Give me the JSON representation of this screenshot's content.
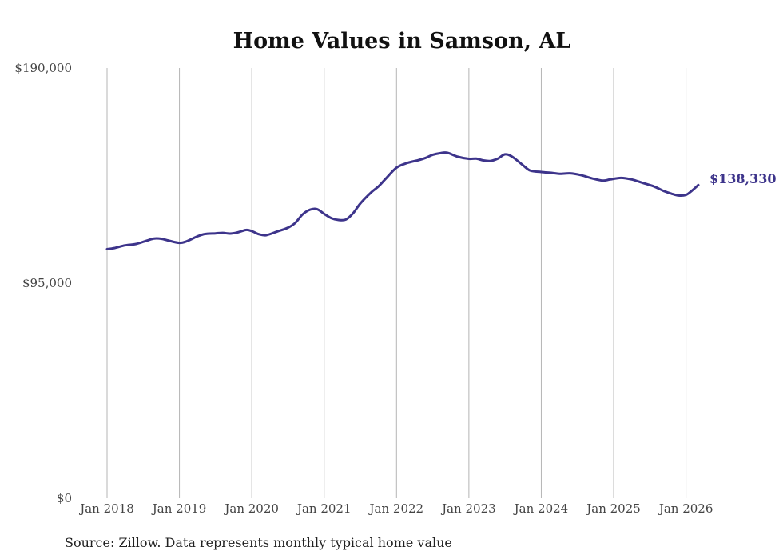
{
  "chart_data": {
    "type": "line",
    "title": "Home Values in Samson, AL",
    "xlabel": "",
    "ylabel": "",
    "ylim": [
      0,
      190000
    ],
    "yticks": [
      {
        "value": 0,
        "label": "$0"
      },
      {
        "value": 95000,
        "label": "$95,000"
      },
      {
        "value": 190000,
        "label": "$190,000"
      }
    ],
    "xticks": [
      {
        "value": 2018,
        "label": "Jan 2018"
      },
      {
        "value": 2019,
        "label": "Jan 2019"
      },
      {
        "value": 2020,
        "label": "Jan 2020"
      },
      {
        "value": 2021,
        "label": "Jan 2021"
      },
      {
        "value": 2022,
        "label": "Jan 2022"
      },
      {
        "value": 2023,
        "label": "Jan 2023"
      },
      {
        "value": 2024,
        "label": "Jan 2024"
      },
      {
        "value": 2025,
        "label": "Jan 2025"
      },
      {
        "value": 2026,
        "label": "Jan 2026"
      }
    ],
    "xlim": [
      2018,
      2026.17
    ],
    "grid": "vertical",
    "line_color": "#3d348b",
    "end_label": "$138,330",
    "series": [
      {
        "name": "Typical home value",
        "x": [
          2018.0,
          2018.1,
          2018.25,
          2018.4,
          2018.55,
          2018.65,
          2018.75,
          2018.85,
          2019.0,
          2019.1,
          2019.25,
          2019.35,
          2019.5,
          2019.6,
          2019.7,
          2019.8,
          2019.92,
          2020.0,
          2020.1,
          2020.2,
          2020.35,
          2020.5,
          2020.6,
          2020.7,
          2020.8,
          2020.9,
          2021.0,
          2021.1,
          2021.2,
          2021.3,
          2021.4,
          2021.5,
          2021.65,
          2021.75,
          2021.85,
          2022.0,
          2022.15,
          2022.3,
          2022.4,
          2022.5,
          2022.6,
          2022.7,
          2022.85,
          2023.0,
          2023.1,
          2023.2,
          2023.3,
          2023.4,
          2023.5,
          2023.6,
          2023.75,
          2023.85,
          2024.0,
          2024.15,
          2024.25,
          2024.4,
          2024.55,
          2024.7,
          2024.85,
          2024.95,
          2025.1,
          2025.25,
          2025.4,
          2025.55,
          2025.7,
          2025.8,
          2025.9,
          2026.0,
          2026.08,
          2026.17
        ],
        "values": [
          110000,
          110500,
          111700,
          112300,
          113800,
          114700,
          114600,
          113800,
          112800,
          113500,
          115700,
          116700,
          117000,
          117200,
          116900,
          117400,
          118500,
          118000,
          116600,
          116200,
          117800,
          119500,
          121600,
          125300,
          127400,
          127700,
          125600,
          123700,
          122900,
          123100,
          125900,
          130200,
          135100,
          137700,
          141100,
          146000,
          148100,
          149300,
          150300,
          151700,
          152400,
          152600,
          150800,
          149900,
          150000,
          149200,
          149000,
          150000,
          151900,
          150800,
          147000,
          144700,
          144100,
          143700,
          143300,
          143500,
          142700,
          141300,
          140300,
          140800,
          141500,
          140800,
          139300,
          137800,
          135600,
          134500,
          133700,
          134000,
          135800,
          138330
        ]
      }
    ],
    "source_note": "Source: Zillow. Data represents monthly typical home value"
  }
}
